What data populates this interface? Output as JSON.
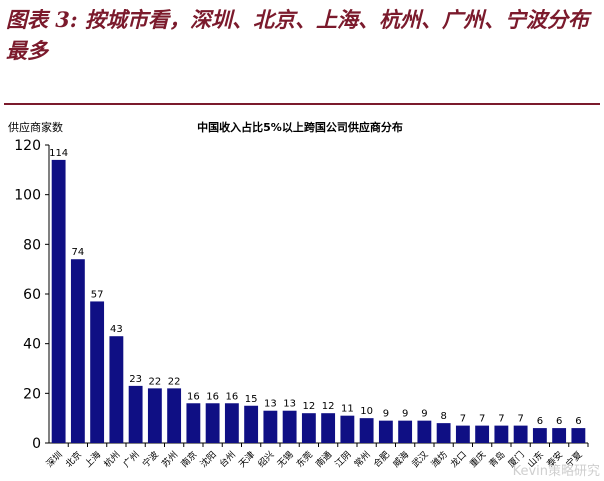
{
  "figure_title": "图表 3: 按城市看，深圳、北京、上海、杭州、广州、宁波分布最多",
  "watermark": "Kevin策略研究",
  "chart_data": {
    "type": "bar",
    "title": "中国收入占比5%以上跨国公司供应商分布",
    "ylabel": "供应商家数",
    "xlabel": "",
    "ylim": [
      0,
      120
    ],
    "yticks": [
      0,
      20,
      40,
      60,
      80,
      100,
      120
    ],
    "grid": false,
    "bar_color": "#0f0f84",
    "categories": [
      "深圳",
      "北京",
      "上海",
      "杭州",
      "广州",
      "宁波",
      "苏州",
      "南京",
      "沈阳",
      "台州",
      "天津",
      "绍兴",
      "无锡",
      "东莞",
      "南通",
      "江阴",
      "常州",
      "合肥",
      "威海",
      "武汉",
      "潍坊",
      "龙口",
      "重庆",
      "青岛",
      "厦门",
      "山东",
      "泰安",
      "宁夏"
    ],
    "values": [
      114,
      74,
      57,
      43,
      23,
      22,
      22,
      16,
      16,
      16,
      15,
      13,
      13,
      12,
      12,
      11,
      10,
      9,
      9,
      9,
      8,
      7,
      7,
      7,
      7,
      6,
      6,
      6
    ]
  }
}
